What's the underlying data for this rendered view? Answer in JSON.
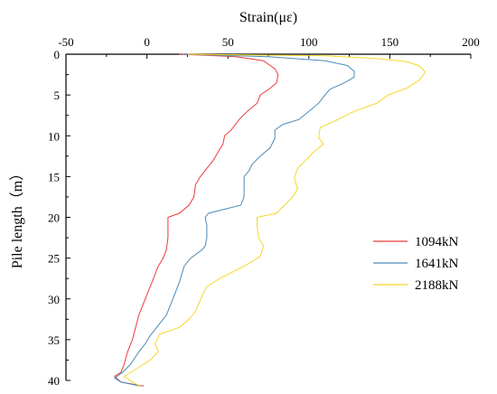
{
  "chart_data": {
    "type": "line",
    "orientation": "depth-profile",
    "xlabel": "Strain(με)",
    "ylabel": "Pile length（m）",
    "x_axis_position": "top",
    "y_axis_inverted": true,
    "xlim": [
      -50,
      200
    ],
    "ylim": [
      0,
      40
    ],
    "x_ticks": [
      -50,
      0,
      50,
      100,
      150,
      200
    ],
    "y_ticks": [
      0,
      5,
      10,
      15,
      20,
      25,
      30,
      35,
      40
    ],
    "grid": false,
    "legend_position": "right",
    "series": [
      {
        "name": "1094kN",
        "color": "#ee3b3b",
        "points": [
          [
            20,
            0
          ],
          [
            55,
            0.3
          ],
          [
            72,
            0.8
          ],
          [
            79,
            1.8
          ],
          [
            81,
            2.5
          ],
          [
            80,
            3.5
          ],
          [
            76,
            4.2
          ],
          [
            70,
            5
          ],
          [
            68,
            6
          ],
          [
            62,
            7
          ],
          [
            57,
            8
          ],
          [
            52,
            9.3
          ],
          [
            48,
            10
          ],
          [
            47,
            11
          ],
          [
            44,
            12
          ],
          [
            41,
            13
          ],
          [
            37,
            14
          ],
          [
            33,
            15
          ],
          [
            30,
            16
          ],
          [
            29,
            17.5
          ],
          [
            26,
            18.5
          ],
          [
            20,
            19.5
          ],
          [
            13,
            20
          ],
          [
            13,
            21
          ],
          [
            13,
            22.5
          ],
          [
            12,
            24
          ],
          [
            10,
            25
          ],
          [
            7,
            26
          ],
          [
            4,
            27.5
          ],
          [
            1,
            29
          ],
          [
            -2,
            30.5
          ],
          [
            -5,
            32
          ],
          [
            -7,
            33.5
          ],
          [
            -9,
            35
          ],
          [
            -12,
            36.5
          ],
          [
            -14,
            38
          ],
          [
            -16,
            39
          ],
          [
            -20,
            39.5
          ],
          [
            -16,
            40.2
          ],
          [
            -2,
            40.7
          ]
        ]
      },
      {
        "name": "1641kN",
        "color": "#4a8ab8",
        "points": [
          [
            22,
            0
          ],
          [
            75,
            0.3
          ],
          [
            110,
            0.8
          ],
          [
            124,
            1.4
          ],
          [
            128,
            2.1
          ],
          [
            128,
            2.8
          ],
          [
            122,
            3.5
          ],
          [
            113,
            4.3
          ],
          [
            110,
            5
          ],
          [
            106,
            6
          ],
          [
            100,
            7
          ],
          [
            94,
            8
          ],
          [
            84,
            8.6
          ],
          [
            79,
            9.3
          ],
          [
            79,
            10.3
          ],
          [
            76,
            11.5
          ],
          [
            70,
            12.5
          ],
          [
            65,
            13.5
          ],
          [
            63,
            14.3
          ],
          [
            60,
            15
          ],
          [
            60,
            16
          ],
          [
            60,
            17.5
          ],
          [
            58,
            18.5
          ],
          [
            48,
            19
          ],
          [
            38,
            19.5
          ],
          [
            36,
            20
          ],
          [
            37,
            21
          ],
          [
            37,
            22.5
          ],
          [
            36,
            23.5
          ],
          [
            34,
            24
          ],
          [
            27,
            25
          ],
          [
            23,
            26
          ],
          [
            20,
            28
          ],
          [
            16,
            30
          ],
          [
            12,
            32
          ],
          [
            6,
            33.5
          ],
          [
            2,
            34.5
          ],
          [
            -1,
            35.5
          ],
          [
            -5,
            36.5
          ],
          [
            -10,
            38
          ],
          [
            -15,
            39
          ],
          [
            -20,
            39.7
          ],
          [
            -16,
            40.2
          ],
          [
            -4,
            40.7
          ]
        ]
      },
      {
        "name": "2188kN",
        "color": "#f5d72a",
        "points": [
          [
            25,
            0
          ],
          [
            110,
            0.2
          ],
          [
            140,
            0.5
          ],
          [
            160,
            0.9
          ],
          [
            168,
            1.4
          ],
          [
            172,
            2.2
          ],
          [
            168,
            3.2
          ],
          [
            160,
            4.2
          ],
          [
            149,
            5
          ],
          [
            142,
            6
          ],
          [
            128,
            7
          ],
          [
            118,
            8
          ],
          [
            107,
            9
          ],
          [
            106,
            10.2
          ],
          [
            109,
            11
          ],
          [
            103,
            12
          ],
          [
            98,
            13
          ],
          [
            93,
            14
          ],
          [
            91,
            15.2
          ],
          [
            93,
            16.5
          ],
          [
            90,
            17.5
          ],
          [
            85,
            18.5
          ],
          [
            80,
            19.5
          ],
          [
            68,
            20
          ],
          [
            68,
            21
          ],
          [
            69,
            22.5
          ],
          [
            72,
            23.5
          ],
          [
            70,
            24.8
          ],
          [
            60,
            26
          ],
          [
            45,
            27.5
          ],
          [
            37,
            28.5
          ],
          [
            34,
            29.7
          ],
          [
            30,
            31.5
          ],
          [
            26,
            32.5
          ],
          [
            20,
            33.5
          ],
          [
            8,
            34.3
          ],
          [
            5,
            35.5
          ],
          [
            7,
            36.5
          ],
          [
            2,
            37.5
          ],
          [
            -6,
            38.5
          ],
          [
            -10,
            39
          ],
          [
            -14,
            39.5
          ],
          [
            -9,
            40.2
          ],
          [
            -4,
            40.7
          ]
        ]
      }
    ]
  }
}
